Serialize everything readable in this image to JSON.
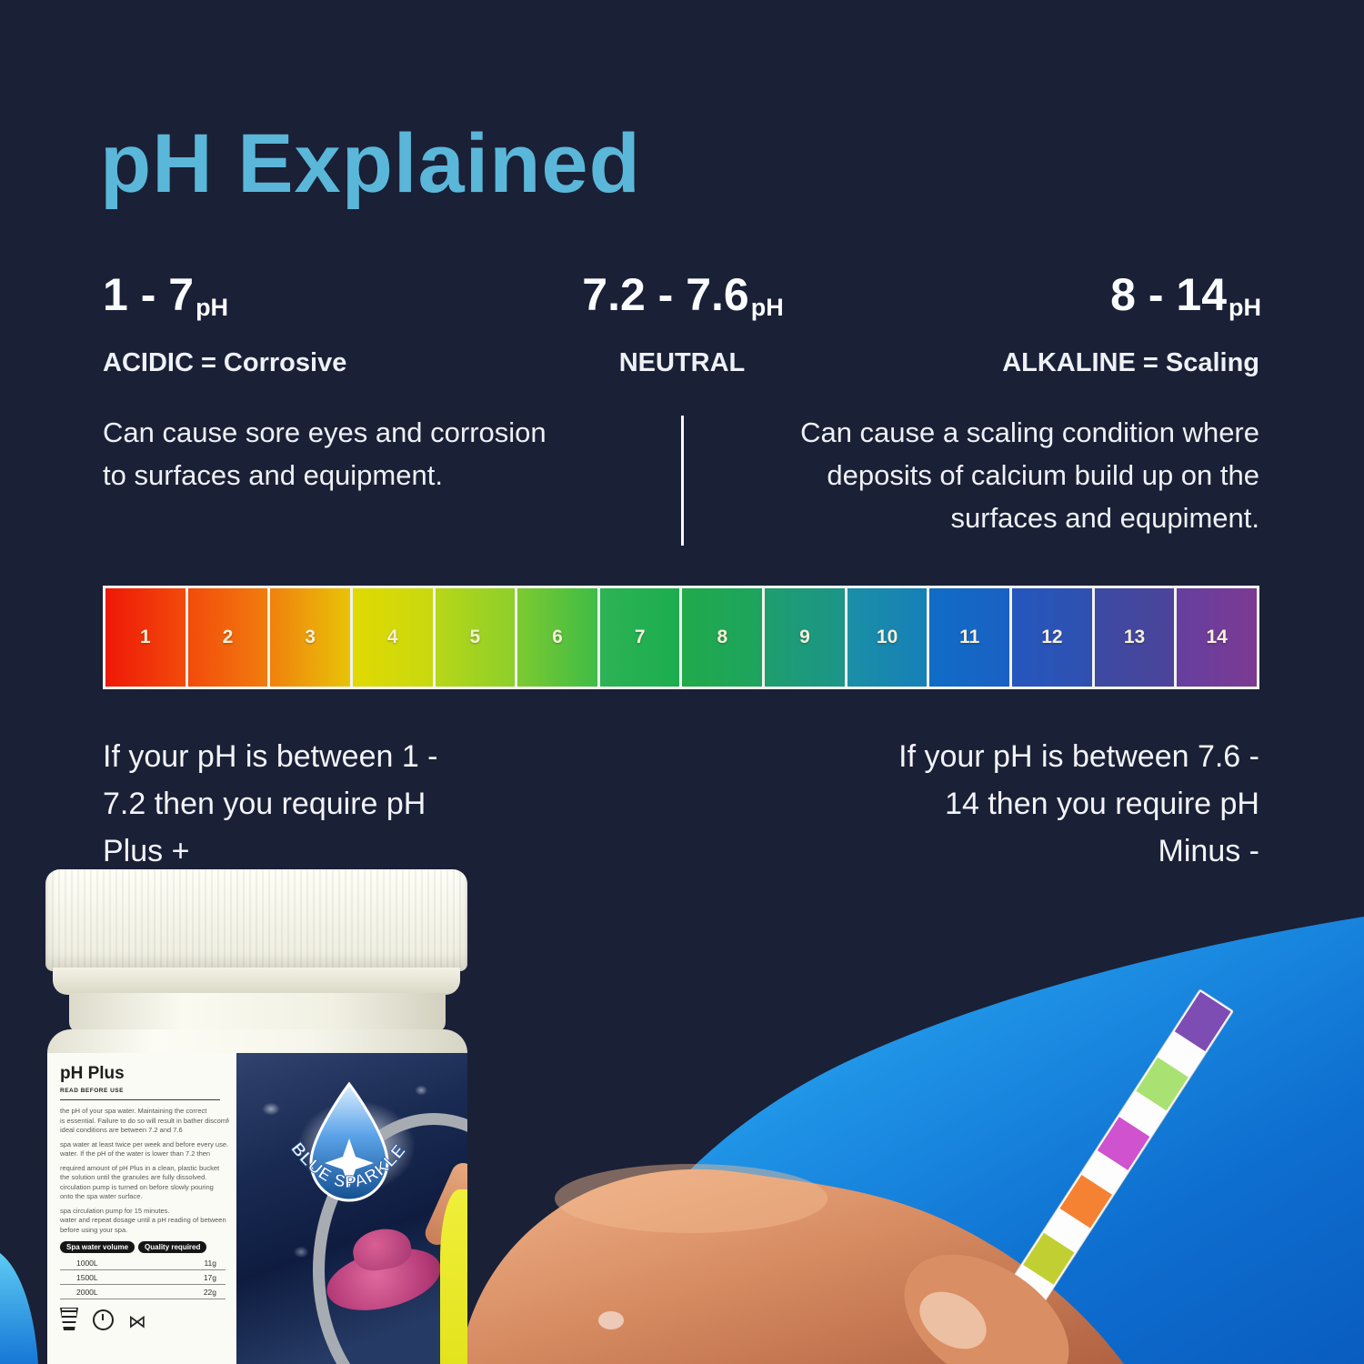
{
  "page": {
    "background": "#1a2036",
    "accent_blue": "#5ab7d9",
    "text_color": "#f2f4f6",
    "scale_border": "#f2f2ee"
  },
  "title": "pH Explained",
  "columns": {
    "acidic": {
      "range": "1 - 7",
      "range_unit": "pH",
      "label": "ACIDIC = Corrosive",
      "desc_lines": [
        "Can cause sore eyes and corrosion",
        "to surfaces and equipment."
      ]
    },
    "neutral": {
      "range": "7.2 - 7.6",
      "range_unit": "pH",
      "label": "NEUTRAL"
    },
    "alkaline": {
      "range": "8 - 14",
      "range_unit": "pH",
      "label": "ALKALINE = Scaling",
      "desc_lines": [
        "Can cause a scaling condition where",
        "deposits of calcium build up on the",
        "surfaces and equpiment."
      ]
    }
  },
  "scale": {
    "cells": [
      {
        "value": "1",
        "from": "#ee1808",
        "to": "#f34b0b"
      },
      {
        "value": "2",
        "from": "#f34b0b",
        "to": "#f07d0e"
      },
      {
        "value": "3",
        "from": "#f0810e",
        "to": "#e8c307"
      },
      {
        "value": "4",
        "from": "#e0d903",
        "to": "#c8d90f"
      },
      {
        "value": "5",
        "from": "#b8d618",
        "to": "#8ccf2a"
      },
      {
        "value": "6",
        "from": "#7cca30",
        "to": "#3fbc46"
      },
      {
        "value": "7",
        "from": "#2db355",
        "to": "#1bad4f"
      },
      {
        "value": "8",
        "from": "#21aa4b",
        "to": "#1da35f"
      },
      {
        "value": "9",
        "from": "#1f9e6e",
        "to": "#1b9589"
      },
      {
        "value": "10",
        "from": "#1a8fa5",
        "to": "#1680b8"
      },
      {
        "value": "11",
        "from": "#106dc6",
        "to": "#1a60c4"
      },
      {
        "value": "12",
        "from": "#2457be",
        "to": "#3050b0"
      },
      {
        "value": "13",
        "from": "#3c4aa3",
        "to": "#4c4499"
      },
      {
        "value": "14",
        "from": "#653fa0",
        "to": "#7c3a92"
      }
    ]
  },
  "notes": {
    "left_lines": [
      "If your pH is between 1 -",
      "7.2 then you require pH",
      "Plus +"
    ],
    "right_lines": [
      "If your pH is between 7.6 -",
      "14 then you require pH",
      "Minus -"
    ]
  },
  "product": {
    "heading": "pH Plus",
    "subheading": "READ BEFORE USE",
    "lines": [
      "the pH of your spa water. Maintaining the correct",
      "is essential. Failure to do so will result in bather discomfort",
      "ideal conditions are between 7.2 and 7.6",
      "spa water at least twice per week and before every use.",
      "water. If the pH of the water is lower than 7.2 then",
      "required amount of pH Plus in a clean, plastic bucket",
      "the solution until the granules are fully dissolved.",
      "circulation pump is turned on before slowly pouring",
      "onto the spa water surface.",
      "spa circulation pump for 15 minutes.",
      "water and repeat dosage until a pH reading of between",
      "before using your spa."
    ],
    "table": {
      "headers": [
        "Spa water volume",
        "Quality required"
      ],
      "rows": [
        [
          "1000L",
          "11g"
        ],
        [
          "1500L",
          "17g"
        ],
        [
          "2000L",
          "22g"
        ]
      ]
    },
    "brand": "BLUE SPARKLE"
  },
  "strip": {
    "pads": [
      "#7d4db4",
      "#a9e272",
      "#cf52cf",
      "#f58233",
      "#c2cf33",
      "#ee4168"
    ]
  }
}
